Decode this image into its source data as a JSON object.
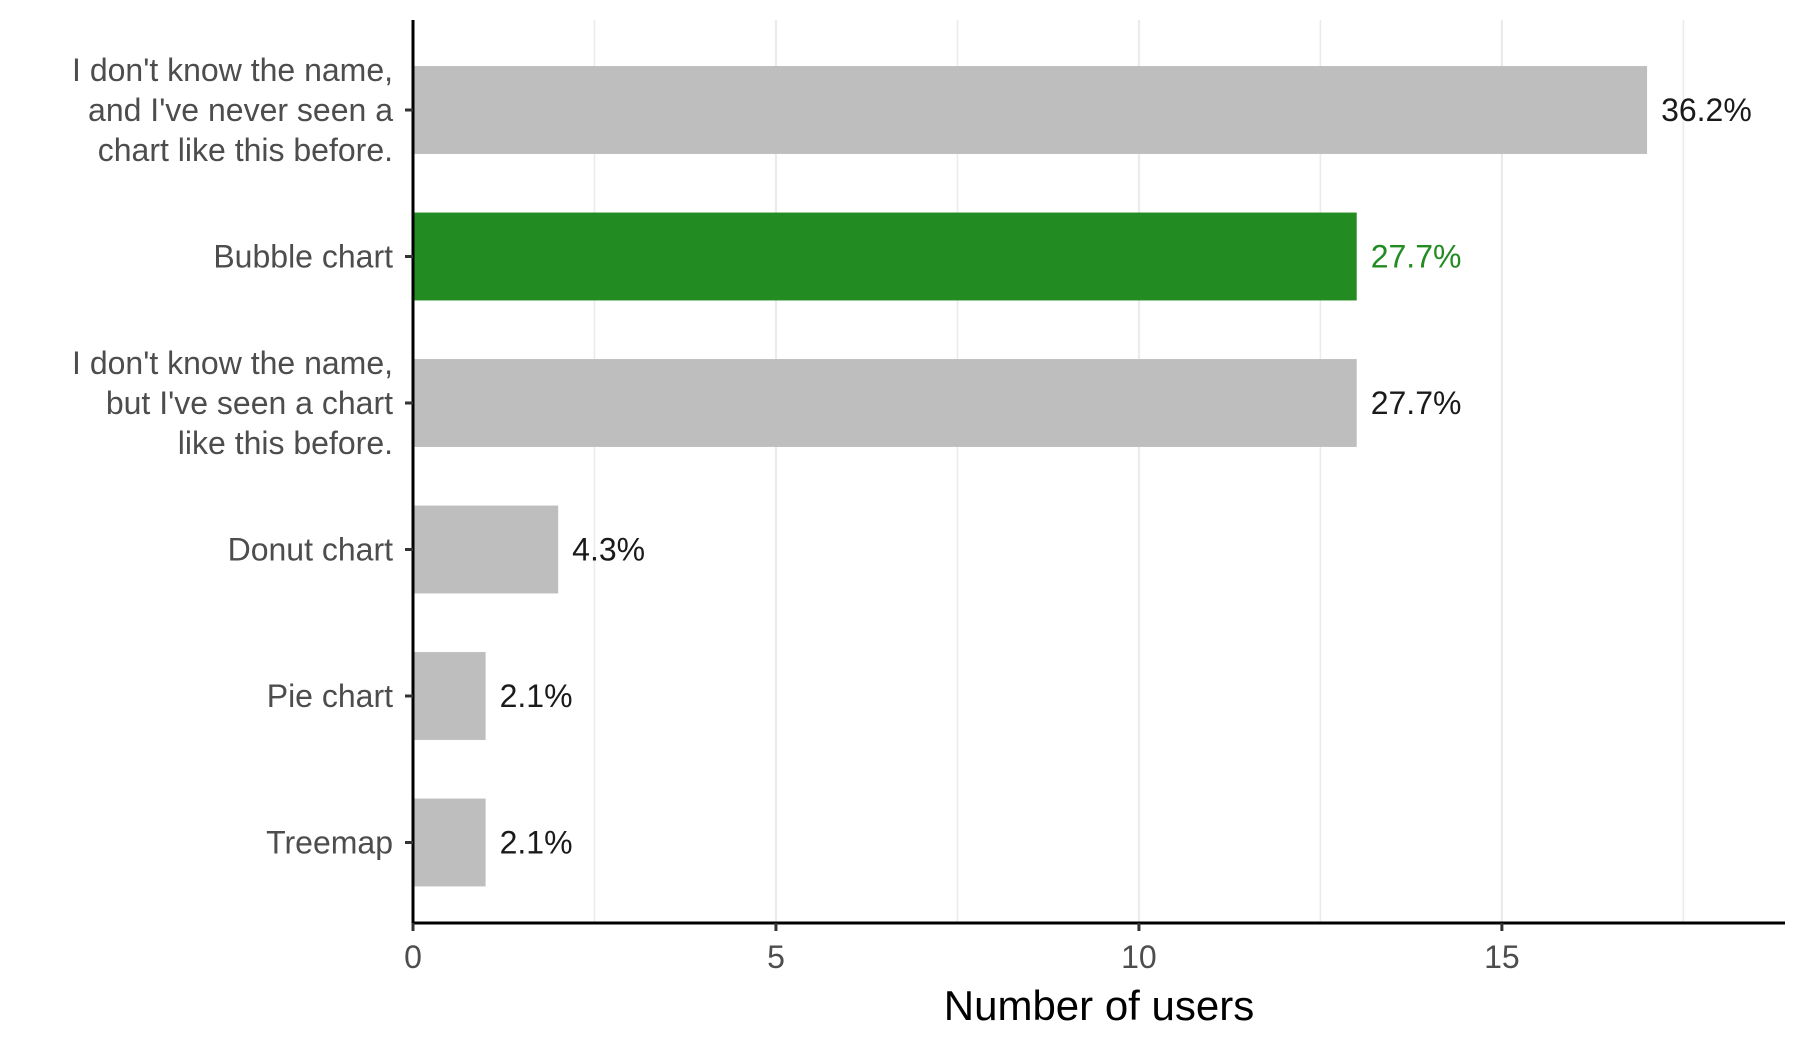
{
  "chart_data": {
    "type": "bar",
    "orientation": "horizontal",
    "categories": [
      [
        "I don't know the name,",
        "and I've never seen a",
        "chart like this before."
      ],
      [
        "Bubble chart"
      ],
      [
        "I don't know the name,",
        "but I've seen a chart",
        "like this before."
      ],
      [
        "Donut chart"
      ],
      [
        "Pie chart"
      ],
      [
        "Treemap"
      ]
    ],
    "values": [
      17,
      13,
      13,
      2,
      1,
      1
    ],
    "data_labels": [
      "36.2%",
      "27.7%",
      "27.7%",
      "4.3%",
      "2.1%",
      "2.1%"
    ],
    "highlighted_index": 1,
    "xlabel": "Number of users",
    "ylabel": "",
    "xlim": [
      0,
      18.9
    ],
    "x_ticks": [
      0,
      5,
      10,
      15
    ],
    "x_tick_labels": [
      "0",
      "5",
      "10",
      "15"
    ],
    "grid": "vertical major and minor",
    "legend": "none",
    "colors": {
      "bar_default": "#bebebe",
      "bar_highlight": "#228b22",
      "label_default": "#1a1a1a",
      "label_highlight": "#228b22",
      "grid": "#ebebeb",
      "axis": "#000000",
      "tick_text": "#4d4d4d"
    }
  }
}
